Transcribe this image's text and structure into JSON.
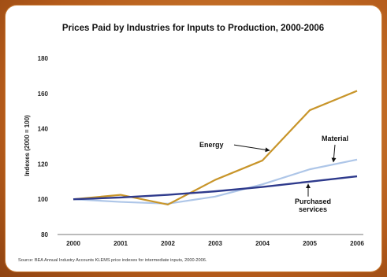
{
  "chart_data": {
    "type": "line",
    "title": "Prices Paid by Industries for Inputs to Production, 2000-2006",
    "xlabel": "",
    "ylabel": "Indexes (2000 = 100)",
    "x": [
      2000,
      2001,
      2002,
      2003,
      2004,
      2005,
      2006
    ],
    "ylim": [
      80,
      180
    ],
    "yticks": [
      80,
      100,
      120,
      140,
      160,
      180
    ],
    "grid": false,
    "legend": "none",
    "series": [
      {
        "name": "Energy",
        "color": "#c8952a",
        "values": [
          100,
          102.5,
          97,
          111,
          122,
          150.5,
          161.5
        ]
      },
      {
        "name": "Material",
        "color": "#aec6e8",
        "values": [
          100,
          98.5,
          97.5,
          101.5,
          108.5,
          117,
          122.5
        ]
      },
      {
        "name": "Purchased services",
        "color": "#2e3a8c",
        "values": [
          100,
          101,
          102.5,
          104.5,
          107,
          110,
          113
        ]
      }
    ],
    "annotations": [
      {
        "text": "Energy",
        "series": "Energy",
        "point_x": 2004.2
      },
      {
        "text": "Material",
        "series": "Material",
        "point_x": 2005.5
      },
      {
        "text": "Purchased services",
        "lines": [
          "Purchased",
          "services"
        ],
        "series": "Purchased services",
        "point_x": 2005.0
      }
    ],
    "source": "Source:  BEA Annual Industry Accounts KLEMS price indexes for intermediate inputs, 2000-2006."
  }
}
